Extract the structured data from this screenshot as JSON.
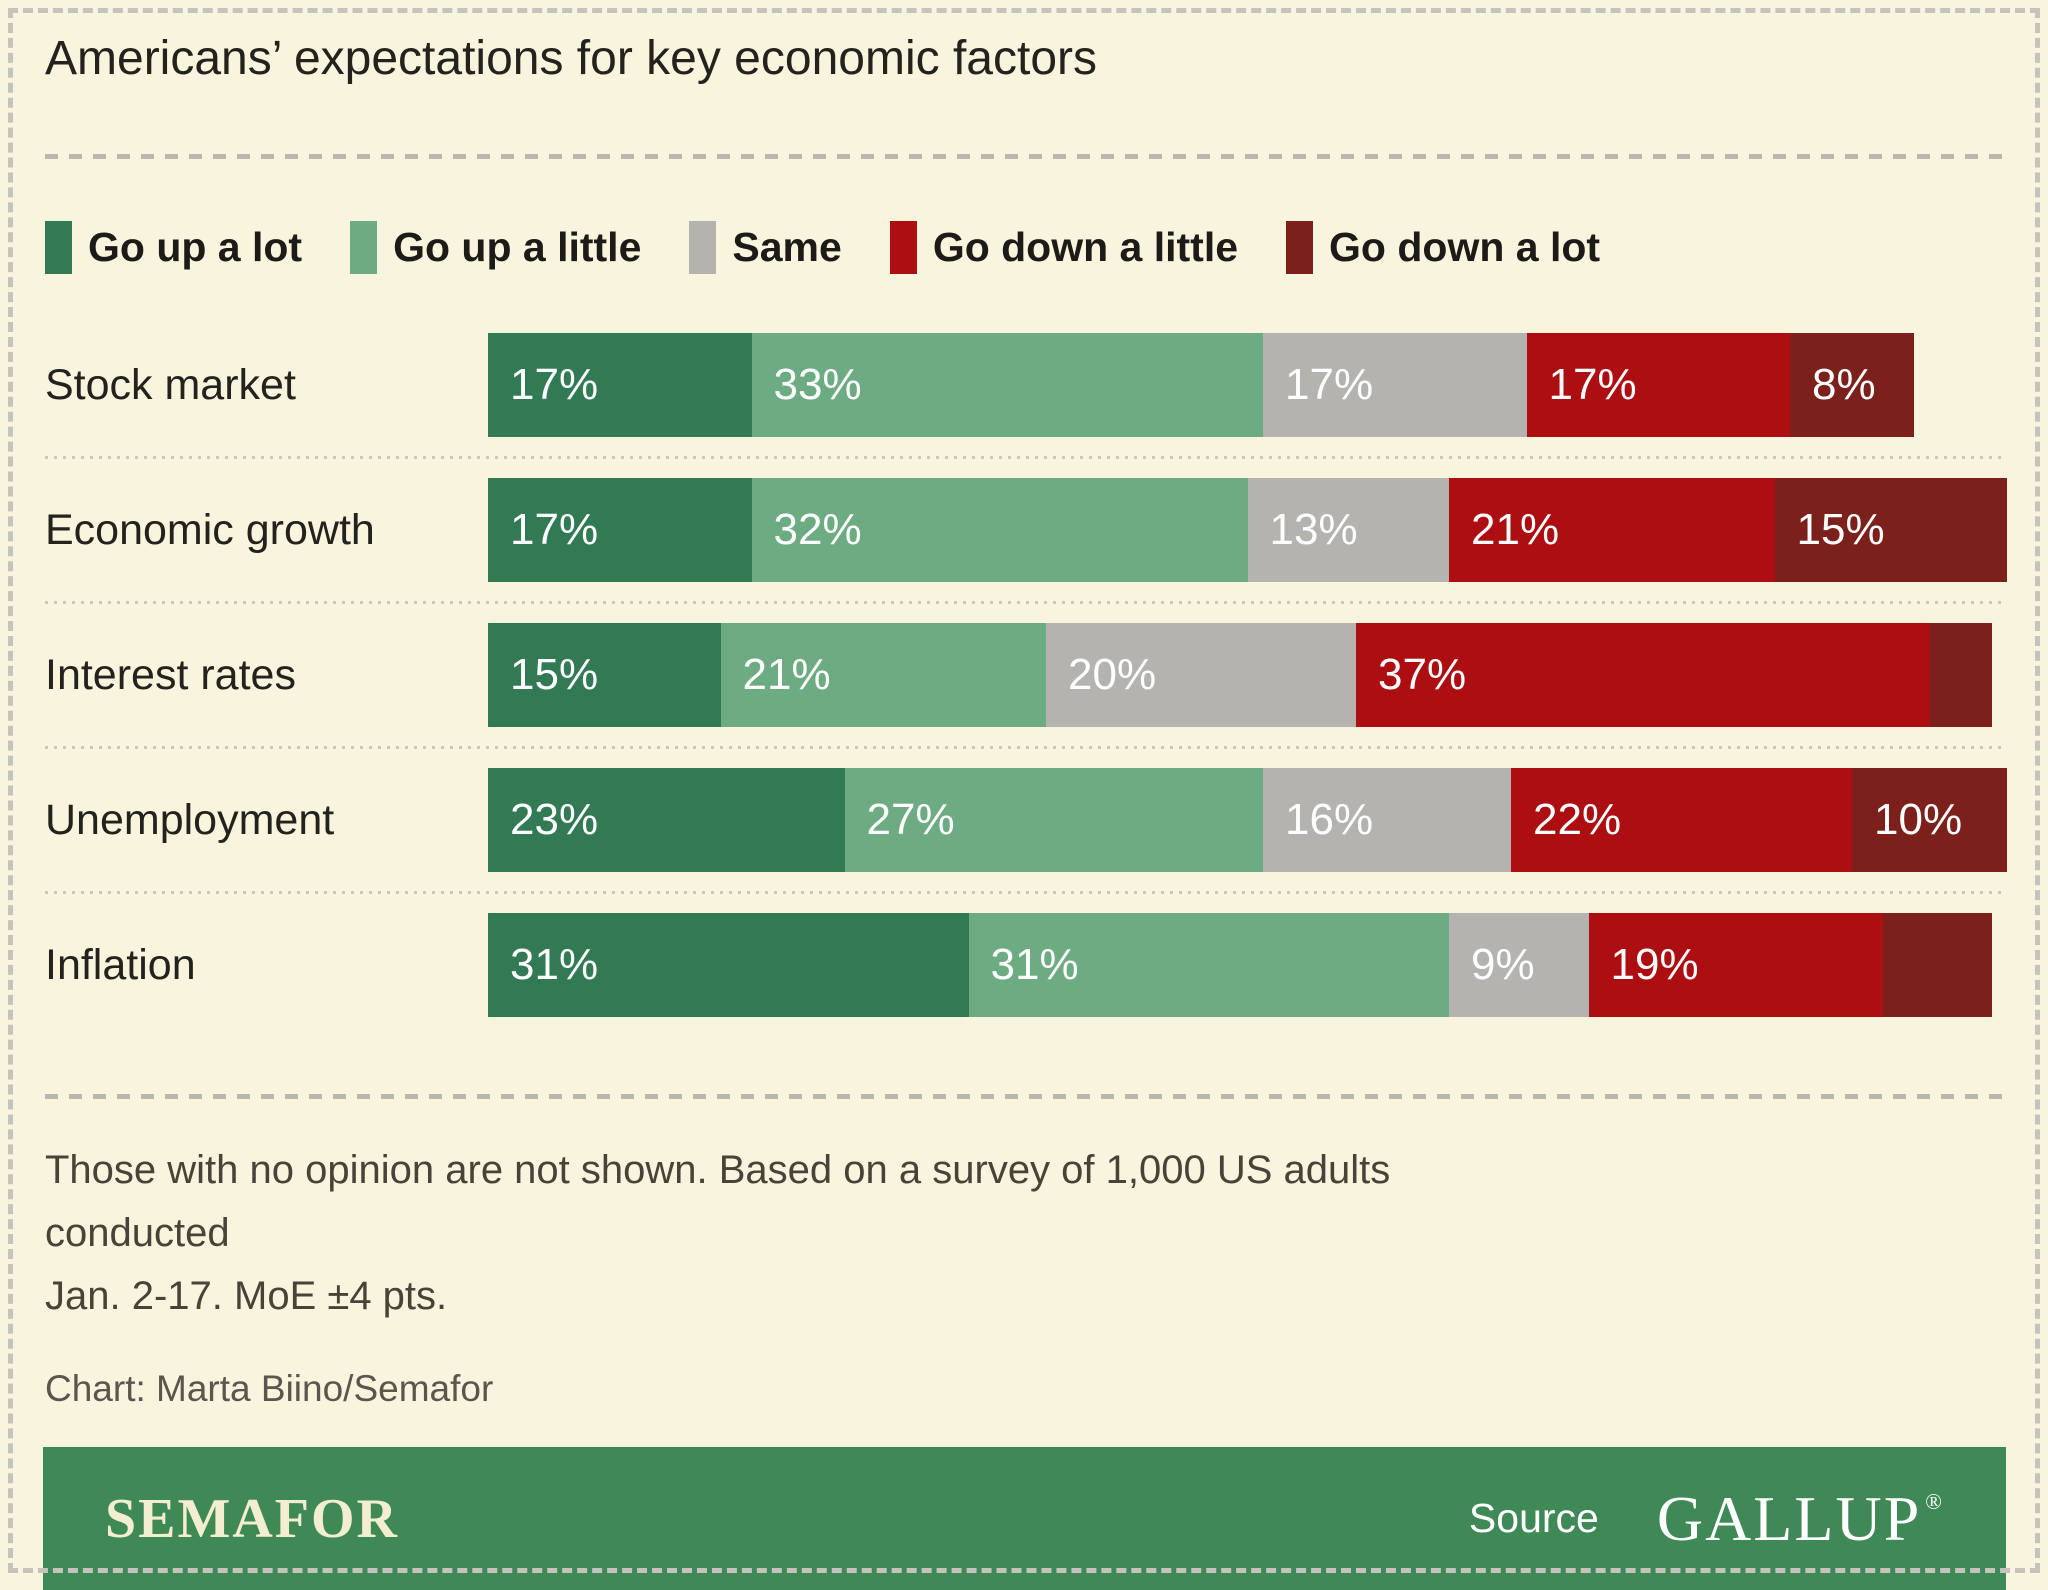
{
  "title": "Americans’ expectations for key economic factors",
  "legend": [
    {
      "label": "Go up a lot",
      "color": "#317a54"
    },
    {
      "label": "Go up a little",
      "color": "#6dac83"
    },
    {
      "label": "Same",
      "color": "#b5b3b0"
    },
    {
      "label": "Go down a little",
      "color": "#ad0e12"
    },
    {
      "label": "Go down a lot",
      "color": "#7b201b"
    }
  ],
  "chart_data": {
    "type": "bar",
    "orientation": "horizontal",
    "stacked": true,
    "unit": "%",
    "title": "Americans’ expectations for key economic factors",
    "xlim": [
      0,
      100
    ],
    "grid": false,
    "legend_position": "top",
    "categories": [
      "Stock market",
      "Economic growth",
      "Interest rates",
      "Unemployment",
      "Inflation"
    ],
    "series_names": [
      "Go up a lot",
      "Go up a little",
      "Same",
      "Go down a little",
      "Go down a lot"
    ],
    "series_keys": [
      "go-up-a-lot",
      "go-up-a-little",
      "same",
      "go-down-a-little",
      "go-down-a-lot"
    ],
    "series_colors": [
      "#317a54",
      "#6dac83",
      "#b5b3b0",
      "#ad0e12",
      "#7b201b"
    ],
    "series": [
      {
        "name": "Go up a lot",
        "values": [
          17,
          17,
          15,
          23,
          31
        ]
      },
      {
        "name": "Go up a little",
        "values": [
          33,
          32,
          21,
          27,
          31
        ]
      },
      {
        "name": "Same",
        "values": [
          17,
          13,
          20,
          16,
          9
        ]
      },
      {
        "name": "Go down a little",
        "values": [
          17,
          21,
          37,
          22,
          19
        ]
      },
      {
        "name": "Go down a lot",
        "values": [
          8,
          15,
          4,
          10,
          7
        ]
      }
    ],
    "rows": [
      {
        "category": "Stock market",
        "values": [
          17,
          33,
          17,
          17,
          8
        ],
        "labels": [
          "17%",
          "33%",
          "17%",
          "17%",
          "8%"
        ]
      },
      {
        "category": "Economic growth",
        "values": [
          17,
          32,
          13,
          21,
          15
        ],
        "labels": [
          "17%",
          "32%",
          "13%",
          "21%",
          "15%"
        ]
      },
      {
        "category": "Interest rates",
        "values": [
          15,
          21,
          20,
          37,
          4
        ],
        "labels": [
          "15%",
          "21%",
          "20%",
          "37%",
          ""
        ]
      },
      {
        "category": "Unemployment",
        "values": [
          23,
          27,
          16,
          22,
          10
        ],
        "labels": [
          "23%",
          "27%",
          "16%",
          "22%",
          "10%"
        ]
      },
      {
        "category": "Inflation",
        "values": [
          31,
          31,
          9,
          19,
          7
        ],
        "labels": [
          "31%",
          "31%",
          "9%",
          "19%",
          ""
        ]
      }
    ]
  },
  "footnote": {
    "line1": "Those with no opinion are not shown. Based on a survey of 1,000 US adults conducted",
    "line2": "Jan. 2-17. MoE ±4 pts."
  },
  "credit": "Chart: Marta Biino/Semafor",
  "footer": {
    "brand": "SEMAFOR",
    "source_label": "Source",
    "source_name": "GALLUP",
    "registered": "®",
    "background": "#3f8956"
  }
}
